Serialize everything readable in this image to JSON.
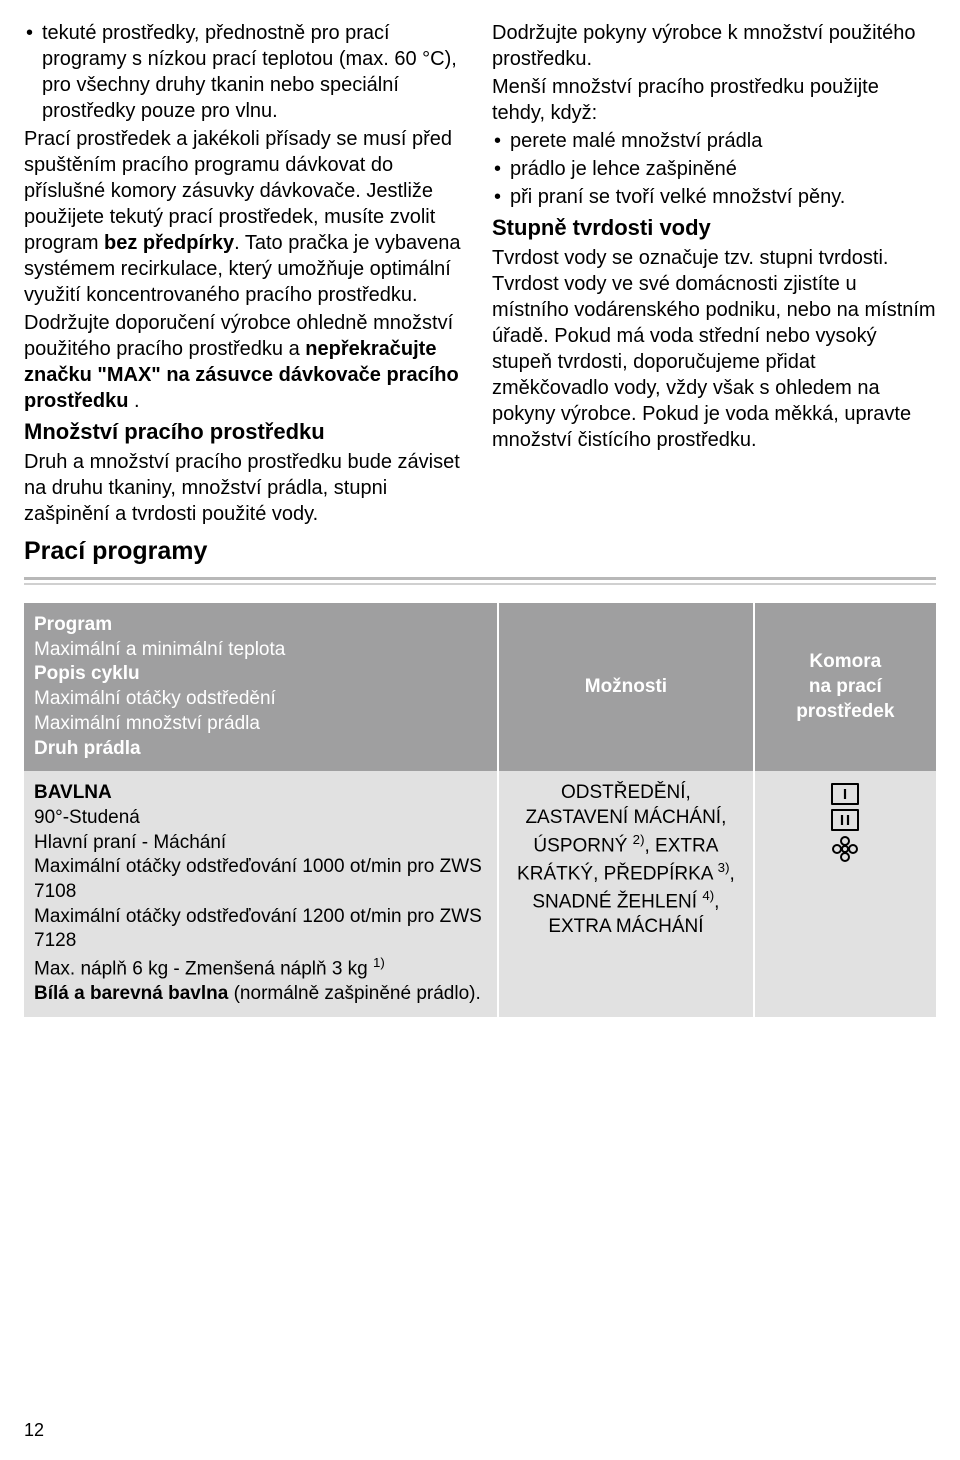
{
  "left": {
    "bullet_intro": "tekuté prostředky, přednostně pro prací programy s nízkou prací teplotou (max. 60 °C), pro všechny druhy tkanin nebo speciální prostředky pouze pro vlnu.",
    "para1": "Prací prostředek a jakékoli přísady se musí před spuštěním pracího programu dávkovat do příslušné komory zásuvky dávkovače. Jestliže použijete tekutý prací prostředek, musíte zvolit program ",
    "para1_bold": "bez předpírky",
    "para1_tail": ". Tato pračka je vybavena systémem recirkulace, který umožňuje optimální využití koncentrovaného pracího prostředku.",
    "para2a": "Dodržujte doporučení výrobce ohledně množství použitého pracího prostředku a ",
    "para2b": "nepřekračujte značku \"MAX\" na zásuvce dávkovače pracího prostředku",
    "para2c": " .",
    "subhead1": "Množství pracího prostředku",
    "para3": "Druh a množství pracího prostředku bude záviset na druhu tkaniny, množství prádla, stupni zašpinění a tvrdosti použité vody.",
    "section_head": "Prací programy"
  },
  "right": {
    "para1": "Dodržujte pokyny výrobce k množství použitého prostředku.",
    "para2": "Menší množství pracího prostředku použijte tehdy, když:",
    "bullets": [
      "perete malé množství prádla",
      "prádlo je lehce zašpiněné",
      "při praní se tvoří velké množství pěny."
    ],
    "subhead1": "Stupně tvrdosti vody",
    "para3": "Tvrdost vody se označuje tzv. stupni tvrdosti. Tvrdost vody ve své domácnosti zjistíte u místního vodárenského podniku, nebo na místním úřadě. Pokud má voda střední nebo vysoký stupeň tvrdosti, doporučujeme přidat změkčovadlo vody, vždy však s ohledem na pokyny výrobce. Pokud je voda měkká, upravte množství čistícího prostředku."
  },
  "table": {
    "header": {
      "program_lines": [
        "Program",
        "Maximální a minimální teplota",
        "Popis cyklu",
        "Maximální otáčky odstředění",
        "Maximální množství prádla",
        "Druh prádla"
      ],
      "options": "Možnosti",
      "compartment_l1": "Komora",
      "compartment_l2": "na prací",
      "compartment_l3": "prostředek"
    },
    "row1": {
      "program_html": "<span class=\"bold\">BAVLNA</span><br>90°-Studená<br>Hlavní praní - Máchání<br>Maximální otáčky odstřeďování 1000 ot/min pro ZWS 7108<br>Maximální otáčky odstřeďování 1200 ot/min pro ZWS 7128<br>Max. náplň 6 kg - Zmenšená náplň 3 kg <span class=\"sup\">1)</span><br><span class=\"bold\">Bílá a barevná bavlna</span> (normálně zašpiněné prádlo).",
      "options_html": "ODSTŘEDĚNÍ, ZASTAVENÍ MÁCHÁNÍ, ÚSPORNÝ <span class=\"sup\">2)</span>, EXTRA KRÁTKÝ, PŘEDPÍRKA <span class=\"sup\">3)</span>, SNADNÉ ŽEHLENÍ <span class=\"sup\">4)</span>, EXTRA MÁCHÁNÍ"
    }
  },
  "page_number": "12"
}
